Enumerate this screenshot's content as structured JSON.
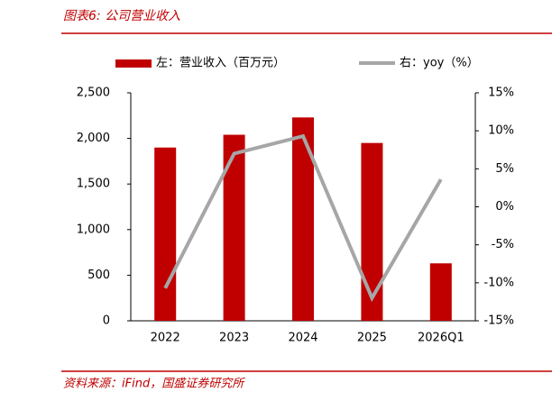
{
  "chart_data": {
    "type": "bar",
    "title": "图表6: 公司营业收入",
    "source": "资料来源：iFind，国盛证券研究所",
    "categories": [
      "2022",
      "2023",
      "2024",
      "2025",
      "2026Q1"
    ],
    "series": [
      {
        "name": "左：营业收入（百万元）",
        "type": "bar",
        "color": "#c00000",
        "values": [
          1900,
          2040,
          2230,
          1950,
          630
        ]
      },
      {
        "name": "右：yoy（%）",
        "type": "line",
        "axis": "y2",
        "color": "#a6a6a6",
        "values": [
          -10.7,
          7.0,
          9.3,
          -12.0,
          3.6
        ]
      }
    ],
    "ylim": [
      0,
      2500
    ],
    "yticks": [
      0,
      500,
      {
        "value": 1000,
        "label": "1,000"
      },
      {
        "value": 1500,
        "label": "1,500"
      },
      {
        "value": 2000,
        "label": "2,000"
      },
      {
        "value": 2500,
        "label": "2,500"
      }
    ],
    "y2lim": [
      -15,
      15
    ],
    "y2ticks": [
      {
        "value": -15,
        "label": "-15%"
      },
      {
        "value": -10,
        "label": "-10%"
      },
      {
        "value": -5,
        "label": "-5%"
      },
      {
        "value": 0,
        "label": "0%"
      },
      {
        "value": 5,
        "label": "5%"
      },
      {
        "value": 10,
        "label": "10%"
      },
      {
        "value": 15,
        "label": "15%"
      }
    ]
  }
}
